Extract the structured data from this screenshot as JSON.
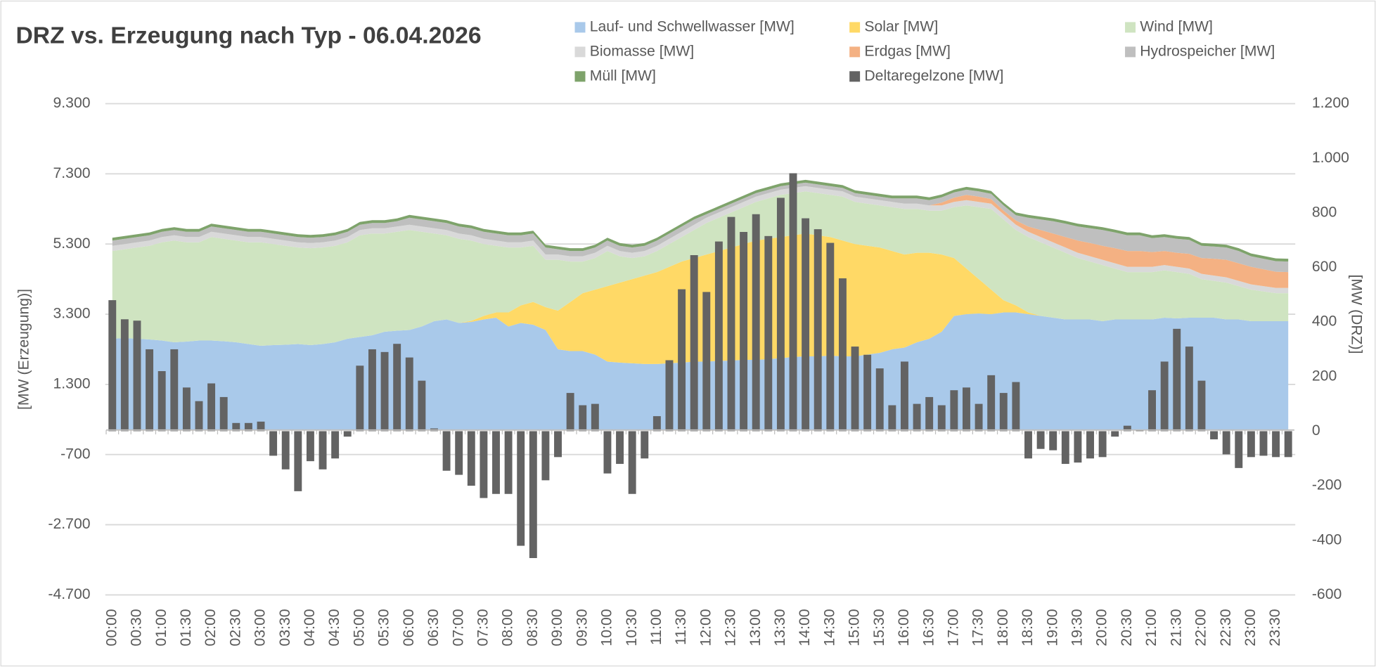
{
  "chart_data": {
    "type": "area",
    "stacked": true,
    "title": "DRZ vs. Erzeugung nach Typ - 06.04.2026",
    "y_label": "[MW (Erzeugung)]",
    "y2_label": "[MW (DRZ)]",
    "legend": "top",
    "grid": true,
    "ylim": [
      -4700,
      9300
    ],
    "yticks": [
      {
        "value": -4700,
        "label": "-4.700"
      },
      {
        "value": -2700,
        "label": "-2.700"
      },
      {
        "value": -700,
        "label": "-700"
      },
      {
        "value": 1300,
        "label": "1.300"
      },
      {
        "value": 3300,
        "label": "3.300"
      },
      {
        "value": 5300,
        "label": "5.300"
      },
      {
        "value": 7300,
        "label": "7.300"
      },
      {
        "value": 9300,
        "label": "9.300"
      }
    ],
    "y2lim": [
      -600,
      1200
    ],
    "y2ticks": [
      -600,
      -400,
      -200,
      0,
      200,
      400,
      600,
      800,
      {
        "value": 1000,
        "label": "1.000"
      },
      {
        "value": 1200,
        "label": "1.200"
      }
    ],
    "categories": [
      "00:00",
      null,
      "00:30",
      null,
      "01:00",
      null,
      "01:30",
      null,
      "02:00",
      null,
      "02:30",
      null,
      "03:00",
      null,
      "03:30",
      null,
      "04:00",
      null,
      "04:30",
      null,
      "05:00",
      null,
      "05:30",
      null,
      "06:00",
      null,
      "06:30",
      null,
      "07:00",
      null,
      "07:30",
      null,
      "08:00",
      null,
      "08:30",
      null,
      "09:00",
      null,
      "09:30",
      null,
      "10:00",
      null,
      "10:30",
      null,
      "11:00",
      null,
      "11:30",
      null,
      "12:00",
      null,
      "12:30",
      null,
      "13:00",
      null,
      "13:30",
      null,
      "14:00",
      null,
      "14:30",
      null,
      "15:00",
      null,
      "15:30",
      null,
      "16:00",
      null,
      "16:30",
      null,
      "17:00",
      null,
      "17:30",
      null,
      "18:00",
      null,
      "18:30",
      null,
      "19:00",
      null,
      "19:30",
      null,
      "20:00",
      null,
      "20:30",
      null,
      "21:00",
      null,
      "21:30",
      null,
      "22:00",
      null,
      "22:30",
      null,
      "23:00",
      null,
      "23:30",
      null
    ],
    "series": [
      {
        "name": "Lauf- und Schwellwasser [MW]",
        "color": "#a9c9ea",
        "values": [
          2600,
          2620,
          2600,
          2580,
          2550,
          2500,
          2520,
          2550,
          2550,
          2530,
          2500,
          2450,
          2400,
          2420,
          2430,
          2450,
          2420,
          2450,
          2500,
          2600,
          2650,
          2700,
          2800,
          2830,
          2850,
          2950,
          3100,
          3150,
          3050,
          3080,
          3150,
          3200,
          2950,
          3050,
          3000,
          2850,
          2300,
          2250,
          2250,
          2150,
          1950,
          1920,
          1900,
          1880,
          1880,
          1900,
          1920,
          1950,
          1950,
          1970,
          1980,
          2000,
          2000,
          2020,
          2050,
          2080,
          2100,
          2100,
          2120,
          2100,
          2100,
          2150,
          2200,
          2300,
          2350,
          2500,
          2600,
          2800,
          3250,
          3300,
          3320,
          3300,
          3350,
          3350,
          3300,
          3250,
          3200,
          3150,
          3150,
          3150,
          3100,
          3150,
          3150,
          3150,
          3150,
          3200,
          3180,
          3200,
          3200,
          3200,
          3150,
          3150,
          3100,
          3100,
          3100,
          3100
        ]
      },
      {
        "name": "Solar [MW]",
        "color": "#ffd966",
        "values": [
          0,
          0,
          0,
          0,
          0,
          0,
          0,
          0,
          0,
          0,
          0,
          0,
          0,
          0,
          0,
          0,
          0,
          0,
          0,
          0,
          0,
          0,
          0,
          0,
          0,
          0,
          0,
          0,
          0,
          30,
          100,
          150,
          400,
          500,
          650,
          650,
          1100,
          1400,
          1650,
          1850,
          2150,
          2280,
          2400,
          2520,
          2620,
          2750,
          2880,
          2950,
          3050,
          3130,
          3220,
          3300,
          3400,
          3430,
          3450,
          3470,
          3500,
          3450,
          3380,
          3300,
          3200,
          3100,
          3000,
          2800,
          2650,
          2550,
          2450,
          2200,
          1650,
          1300,
          980,
          700,
          350,
          200,
          50,
          0,
          0,
          0,
          0,
          0,
          0,
          0,
          0,
          0,
          0,
          0,
          0,
          0,
          0,
          0,
          0,
          0,
          0,
          0,
          0,
          0
        ]
      },
      {
        "name": "Wind [MW]",
        "color": "#cfe4c1",
        "values": [
          2500,
          2530,
          2600,
          2670,
          2800,
          2900,
          2830,
          2800,
          2950,
          2920,
          2900,
          2900,
          2950,
          2880,
          2820,
          2750,
          2760,
          2750,
          2750,
          2750,
          2900,
          2900,
          2800,
          2820,
          2850,
          2700,
          2500,
          2400,
          2400,
          2290,
          2050,
          1900,
          1850,
          1650,
          1600,
          1350,
          1450,
          1150,
          900,
          900,
          1000,
          750,
          600,
          550,
          600,
          650,
          700,
          800,
          900,
          950,
          1000,
          1050,
          1100,
          1150,
          1200,
          1200,
          1200,
          1200,
          1200,
          1250,
          1200,
          1200,
          1200,
          1250,
          1300,
          1250,
          1200,
          1250,
          1450,
          1800,
          2050,
          2300,
          2300,
          2150,
          2150,
          2100,
          2000,
          1900,
          1750,
          1650,
          1600,
          1450,
          1350,
          1350,
          1350,
          1350,
          1320,
          1250,
          1100,
          1050,
          1050,
          950,
          900,
          850,
          800,
          800
        ]
      },
      {
        "name": "Biomasse [MW]",
        "color": "#d9d9d9",
        "values": [
          150,
          150,
          150,
          150,
          150,
          150,
          150,
          150,
          150,
          150,
          150,
          150,
          150,
          150,
          150,
          150,
          150,
          150,
          150,
          150,
          150,
          150,
          150,
          150,
          150,
          150,
          150,
          150,
          150,
          150,
          150,
          150,
          150,
          150,
          150,
          150,
          150,
          150,
          150,
          150,
          150,
          150,
          150,
          150,
          150,
          150,
          150,
          150,
          150,
          150,
          150,
          150,
          150,
          150,
          150,
          150,
          150,
          150,
          150,
          150,
          150,
          150,
          150,
          150,
          150,
          150,
          150,
          150,
          150,
          150,
          150,
          150,
          150,
          150,
          150,
          150,
          150,
          150,
          150,
          150,
          150,
          150,
          150,
          150,
          150,
          150,
          150,
          150,
          150,
          150,
          150,
          150,
          150,
          150,
          150,
          150
        ]
      },
      {
        "name": "Erdgas [MW]",
        "color": "#f4b183",
        "values": [
          0,
          0,
          0,
          0,
          0,
          0,
          0,
          0,
          0,
          0,
          0,
          0,
          0,
          0,
          0,
          0,
          0,
          0,
          0,
          0,
          0,
          0,
          0,
          0,
          0,
          0,
          0,
          0,
          0,
          0,
          0,
          0,
          0,
          0,
          0,
          0,
          0,
          0,
          0,
          0,
          0,
          0,
          0,
          0,
          0,
          0,
          0,
          0,
          0,
          0,
          0,
          0,
          0,
          0,
          0,
          0,
          0,
          0,
          0,
          0,
          0,
          0,
          0,
          0,
          0,
          0,
          0,
          80,
          120,
          150,
          150,
          130,
          100,
          120,
          150,
          200,
          250,
          300,
          350,
          380,
          400,
          430,
          450,
          450,
          420,
          400,
          400,
          420,
          450,
          480,
          500,
          500,
          500,
          480,
          460,
          450
        ]
      },
      {
        "name": "Hydrospeicher [MW]",
        "color": "#bfbfbf",
        "values": [
          150,
          150,
          150,
          150,
          150,
          150,
          150,
          150,
          150,
          150,
          150,
          150,
          150,
          150,
          150,
          150,
          150,
          150,
          150,
          150,
          150,
          150,
          150,
          150,
          200,
          200,
          200,
          200,
          200,
          200,
          200,
          200,
          200,
          200,
          200,
          200,
          150,
          150,
          150,
          150,
          150,
          150,
          150,
          150,
          150,
          150,
          150,
          150,
          100,
          100,
          100,
          100,
          100,
          100,
          100,
          100,
          100,
          100,
          100,
          100,
          100,
          100,
          100,
          100,
          150,
          150,
          150,
          150,
          150,
          150,
          150,
          150,
          150,
          150,
          250,
          300,
          350,
          380,
          400,
          420,
          450,
          450,
          450,
          450,
          400,
          400,
          400,
          400,
          350,
          350,
          350,
          350,
          300,
          300,
          300,
          300
        ]
      },
      {
        "name": "Müll [MW]",
        "color": "#7ea36b",
        "values": [
          80,
          80,
          80,
          80,
          80,
          80,
          80,
          80,
          80,
          80,
          80,
          80,
          80,
          80,
          80,
          80,
          80,
          80,
          80,
          80,
          80,
          80,
          80,
          80,
          80,
          80,
          80,
          80,
          80,
          80,
          80,
          80,
          80,
          80,
          80,
          80,
          80,
          80,
          80,
          80,
          80,
          80,
          80,
          80,
          80,
          80,
          80,
          80,
          80,
          80,
          80,
          80,
          80,
          80,
          80,
          80,
          80,
          80,
          80,
          80,
          80,
          80,
          80,
          80,
          80,
          80,
          80,
          80,
          80,
          80,
          80,
          80,
          80,
          80,
          80,
          80,
          80,
          80,
          80,
          80,
          80,
          80,
          80,
          80,
          80,
          80,
          80,
          80,
          80,
          80,
          80,
          80,
          80,
          80,
          80,
          80
        ]
      },
      {
        "name": "Deltaregelzone [MW]",
        "color": "#636363",
        "type": "bar",
        "axis": "y2",
        "values": [
          480,
          410,
          405,
          300,
          220,
          300,
          160,
          110,
          175,
          125,
          30,
          30,
          35,
          -90,
          -140,
          -220,
          -110,
          -140,
          -100,
          -20,
          240,
          300,
          290,
          320,
          270,
          185,
          10,
          -145,
          -160,
          -200,
          -245,
          -230,
          -230,
          -420,
          -465,
          -180,
          -95,
          140,
          95,
          100,
          -155,
          -120,
          -230,
          -100,
          55,
          260,
          520,
          645,
          510,
          695,
          785,
          730,
          795,
          715,
          855,
          945,
          780,
          740,
          690,
          560,
          310,
          280,
          230,
          95,
          255,
          100,
          125,
          95,
          150,
          160,
          100,
          205,
          140,
          180,
          -100,
          -65,
          -70,
          -120,
          -115,
          -100,
          -95,
          -20,
          20,
          5,
          150,
          255,
          375,
          310,
          185,
          -30,
          -85,
          -135,
          -95,
          -90,
          -95,
          -95
        ]
      }
    ]
  }
}
